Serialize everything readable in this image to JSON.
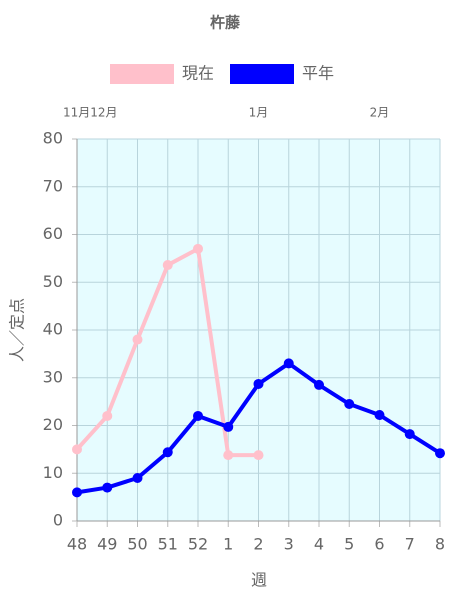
{
  "chart_data": {
    "type": "line",
    "title": "杵藤",
    "x_label": "週",
    "y_label": "人／定点",
    "categories": [
      "48",
      "49",
      "50",
      "51",
      "52",
      "1",
      "2",
      "3",
      "4",
      "5",
      "6",
      "7",
      "8"
    ],
    "top_categories": [
      "11月12月",
      null,
      null,
      null,
      null,
      null,
      "1月",
      null,
      null,
      null,
      "2月",
      null,
      null
    ],
    "series": [
      {
        "name": "現在",
        "color": "#ffc0cb",
        "values": [
          15,
          22,
          38,
          53.6,
          57,
          13.8,
          13.8,
          null,
          null,
          null,
          null,
          null,
          null
        ]
      },
      {
        "name": "平年",
        "color": "#0000ff",
        "values": [
          6,
          7,
          9,
          14.4,
          22,
          19.7,
          28.7,
          33,
          28.5,
          24.5,
          22.2,
          18.2,
          14.2
        ]
      }
    ],
    "ylim": [
      0,
      80
    ],
    "yticks": [
      0,
      10,
      20,
      30,
      40,
      50,
      60,
      70,
      80
    ],
    "grid": true,
    "background": "#e6fcff"
  }
}
